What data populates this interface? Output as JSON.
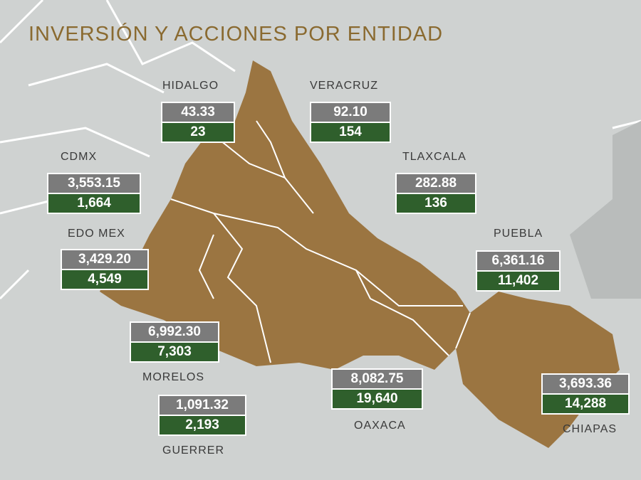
{
  "title": "INVERSIÓN Y ACCIONES POR ENTIDAD",
  "entities": [
    {
      "name": "HIDALGO",
      "investment": "43.33",
      "actions": "23"
    },
    {
      "name": "VERACRUZ",
      "investment": "92.10",
      "actions": "154"
    },
    {
      "name": "CDMX",
      "investment": "3,553.15",
      "actions": "1,664"
    },
    {
      "name": "TLAXCALA",
      "investment": "282.88",
      "actions": "136"
    },
    {
      "name": "EDO MEX",
      "investment": "3,429.20",
      "actions": "4,549"
    },
    {
      "name": "PUEBLA",
      "investment": "6,361.16",
      "actions": "11,402"
    },
    {
      "name": "MORELOS",
      "investment": "6,992.30",
      "actions": "7,303"
    },
    {
      "name": "GUERRER",
      "investment": "1,091.32",
      "actions": "2,193"
    },
    {
      "name": "OAXACA",
      "investment": "8,082.75",
      "actions": "19,640"
    },
    {
      "name": "CHIAPAS",
      "investment": "3,693.36",
      "actions": "14,288"
    }
  ]
}
